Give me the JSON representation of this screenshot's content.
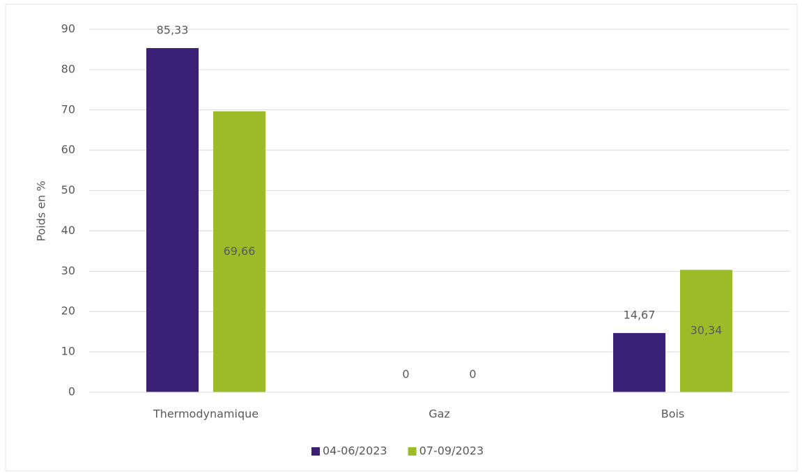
{
  "chart_data": {
    "type": "bar",
    "ylabel": "Poids en %",
    "categories": [
      "Thermodynamique",
      "Gaz",
      "Bois"
    ],
    "series": [
      {
        "name": "04-06/2023",
        "color": "#3b2176",
        "values": [
          85.33,
          0,
          14.67
        ],
        "value_labels": [
          "85,33",
          "0",
          "14,67"
        ]
      },
      {
        "name": "07-09/2023",
        "color": "#9bbb28",
        "values": [
          69.66,
          0,
          30.34
        ],
        "value_labels": [
          "69,66",
          "0",
          "30,34"
        ]
      }
    ],
    "ylim": [
      0,
      90
    ],
    "yticks": [
      0,
      10,
      20,
      30,
      40,
      50,
      60,
      70,
      80,
      90
    ],
    "grid": true,
    "legend": "bottom"
  }
}
